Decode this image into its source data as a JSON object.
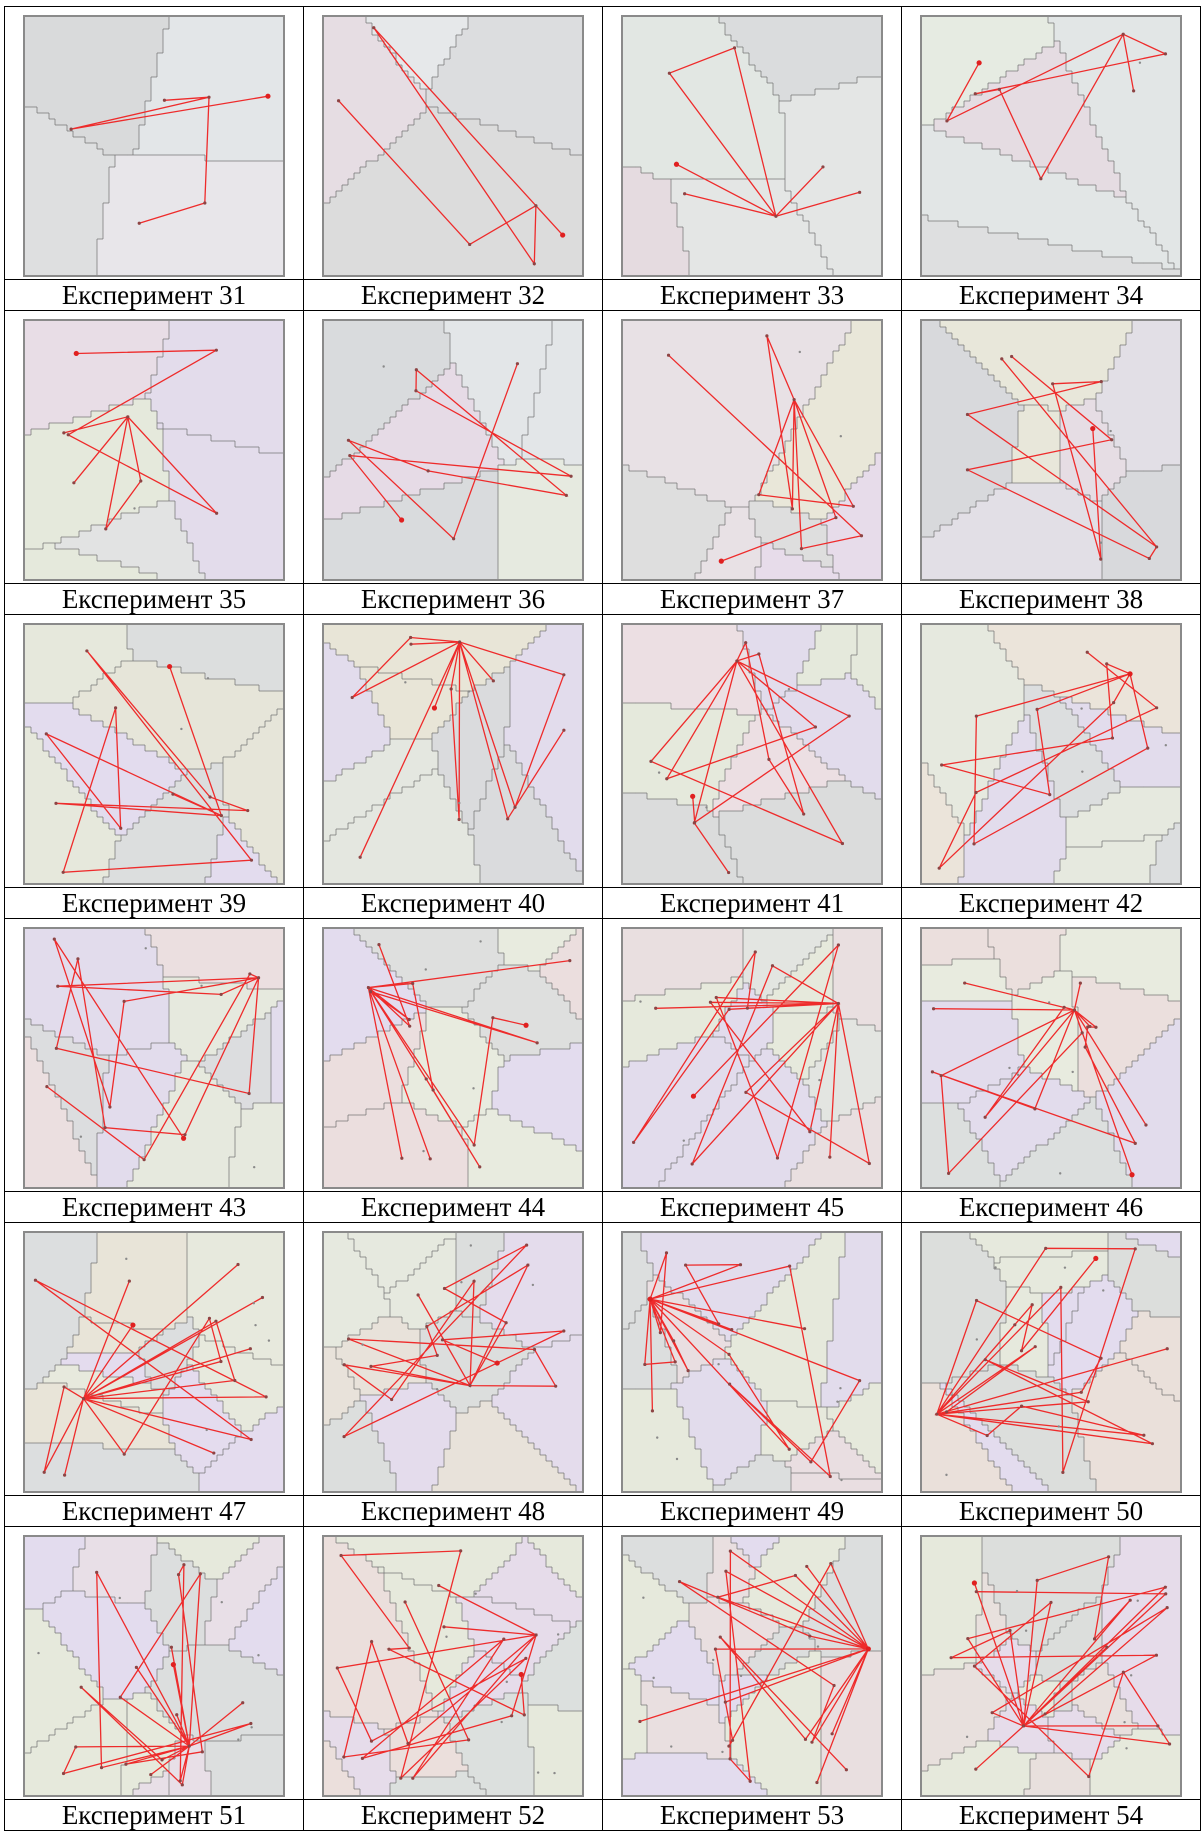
{
  "title": "",
  "experiments": [
    {
      "caption": "Експеримент 31",
      "colors": [
        "#e3e6e8",
        "#d9dadb",
        "#dedfe0",
        "#e8e6ea"
      ]
    },
    {
      "caption": "Експеримент 32",
      "colors": [
        "#e6e8ea",
        "#dcdddf",
        "#e6dde3",
        "#dcdcdc"
      ]
    },
    {
      "caption": "Експеримент 33",
      "colors": [
        "#e4e6e5",
        "#dadcdd",
        "#e5dbe0",
        "#e2e7e3"
      ]
    },
    {
      "caption": "Експеримент 34",
      "colors": [
        "#e2e6e6",
        "#dedfe0",
        "#e5dce2",
        "#e6ebe2"
      ]
    },
    {
      "caption": "Експеримент 35",
      "colors": [
        "#e3dceb",
        "#e5e9dc",
        "#e2e3e3",
        "#e8dde6"
      ]
    },
    {
      "caption": "Експеримент 36",
      "colors": [
        "#e3e6e8",
        "#d9dbdd",
        "#e6dbe6",
        "#e6eae0"
      ]
    },
    {
      "caption": "Експеримент 37",
      "colors": [
        "#e7dcea",
        "#dedede",
        "#e8e1e5",
        "#e9e7d9"
      ]
    },
    {
      "caption": "Експеримент 38",
      "colors": [
        "#e2dfe6",
        "#d8d9dc",
        "#e8e7da",
        "#e6dde4"
      ]
    },
    {
      "caption": "Експеримент 39",
      "colors": [
        "#e3dcee",
        "#e6e8dc",
        "#dcdede",
        "#e6e5d9"
      ]
    },
    {
      "caption": "Експеримент 40",
      "colors": [
        "#e2dcec",
        "#e4e7e0",
        "#dadbdd",
        "#e8e5d7"
      ]
    },
    {
      "caption": "Експеримент 41",
      "colors": [
        "#e5e9dc",
        "#ecdfe3",
        "#e2dcec",
        "#dbdcdc"
      ]
    },
    {
      "caption": "Експеримент 42",
      "colors": [
        "#e6e9df",
        "#e2dcec",
        "#dcdedf",
        "#ebe4da"
      ]
    },
    {
      "caption": "Експеримент 43",
      "colors": [
        "#e6e9de",
        "#e2dcec",
        "#ebdfe0",
        "#dcdddf"
      ]
    },
    {
      "caption": "Експеримент 44",
      "colors": [
        "#e8ebdf",
        "#ebdede",
        "#e3dcee",
        "#dedfde"
      ]
    },
    {
      "caption": "Експеримент 45",
      "colors": [
        "#e6e9dc",
        "#e2dcec",
        "#e9dfe0",
        "#e3e5e1"
      ]
    },
    {
      "caption": "Експеримент 46",
      "colors": [
        "#e8ebdf",
        "#ebdfdd",
        "#e2dcec",
        "#dcdfde"
      ]
    },
    {
      "caption": "Експеримент 47",
      "colors": [
        "#e4dcee",
        "#e7e9dd",
        "#dcdedf",
        "#e8e4d8"
      ]
    },
    {
      "caption": "Експеримент 48",
      "colors": [
        "#e4dcec",
        "#e6e9df",
        "#dcdedd",
        "#e8e2da"
      ]
    },
    {
      "caption": "Експеримент 49",
      "colors": [
        "#e6e9dc",
        "#e2dcec",
        "#e9dee1",
        "#dcdede"
      ]
    },
    {
      "caption": "Експеримент 50",
      "colors": [
        "#e3dcee",
        "#e6e9dd",
        "#eae0da",
        "#dcdedc"
      ]
    },
    {
      "caption": "Експеримент 51",
      "colors": [
        "#e8dfe7",
        "#e6e9dc",
        "#e3dcee",
        "#dcdede"
      ]
    },
    {
      "caption": "Експеримент 52",
      "colors": [
        "#e6dcea",
        "#e6e9dc",
        "#ebdfdc",
        "#dce0de"
      ]
    },
    {
      "caption": "Експеримент 53",
      "colors": [
        "#e6e9dc",
        "#e3dcee",
        "#e9dfe0",
        "#dcdede"
      ]
    },
    {
      "caption": "Експеримент 54",
      "colors": [
        "#e6dcea",
        "#e6e9dc",
        "#e8e0dd",
        "#dcdedc"
      ]
    }
  ]
}
